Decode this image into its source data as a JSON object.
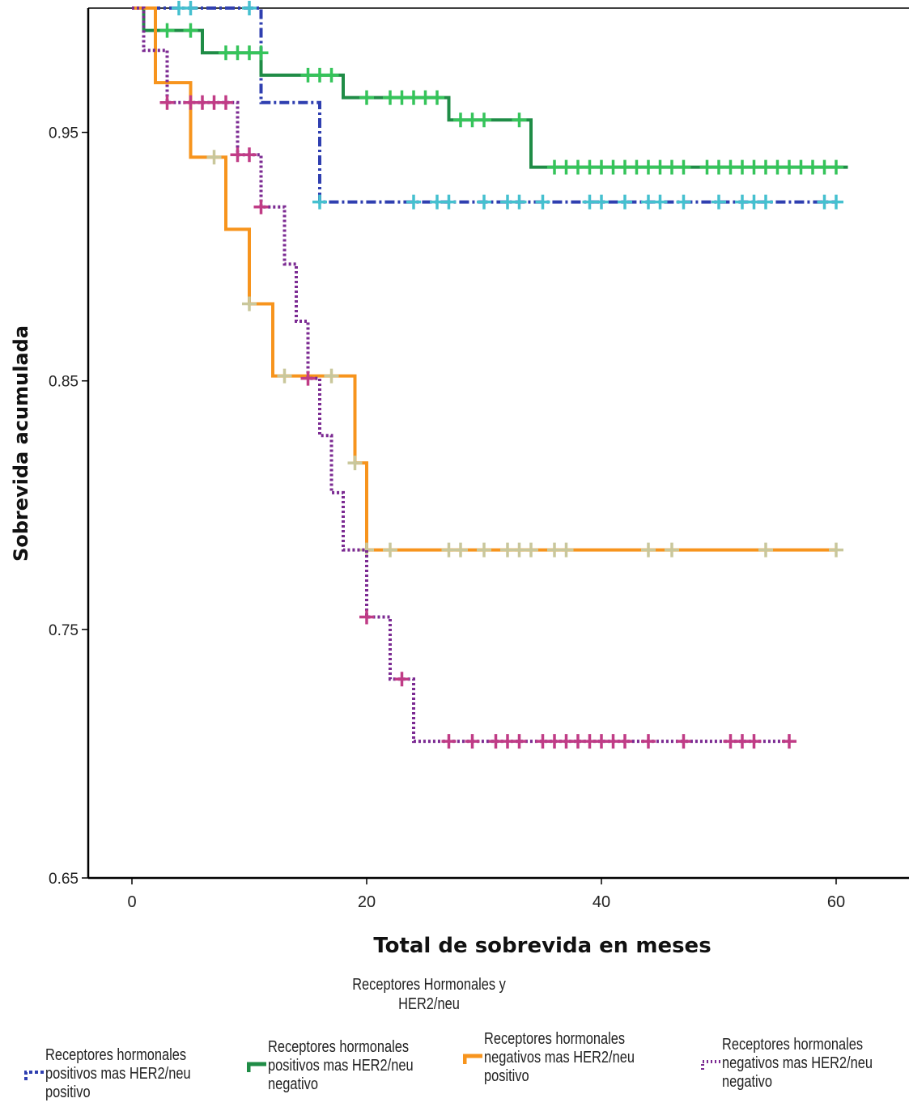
{
  "chart_data": {
    "type": "line",
    "title": "",
    "xlabel": "Total de sobrevida en meses",
    "ylabel": "Sobrevida acumulada",
    "xlim": [
      -4,
      66
    ],
    "ylim": [
      0.65,
      1.0
    ],
    "xticks": [
      0,
      20,
      40,
      60
    ],
    "yticks": [
      0.65,
      0.75,
      0.85,
      0.95
    ],
    "xtick_labels": [
      "0",
      "20",
      "40",
      "60"
    ],
    "ytick_labels": [
      "0.65",
      "0.75",
      "0.85",
      "0.95"
    ],
    "grid": false,
    "legend_title": "Receptores Hormonales y HER2/neu",
    "legend_position": "bottom",
    "series": [
      {
        "name": "Receptores hormonales positivos mas HER2/neu positivo",
        "color": "#2f3fb0",
        "censor_color": "#45c0cf",
        "dash": "12,4,3,4",
        "steps": [
          [
            0,
            1.0
          ],
          [
            11,
            0.962
          ],
          [
            16,
            0.922
          ],
          [
            60,
            0.922
          ]
        ],
        "censored": [
          [
            4,
            1.0
          ],
          [
            5,
            1.0
          ],
          [
            10,
            1.0
          ],
          [
            16,
            0.922
          ],
          [
            24,
            0.922
          ],
          [
            26,
            0.922
          ],
          [
            27,
            0.922
          ],
          [
            30,
            0.922
          ],
          [
            32,
            0.922
          ],
          [
            33,
            0.922
          ],
          [
            35,
            0.922
          ],
          [
            39,
            0.922
          ],
          [
            40,
            0.922
          ],
          [
            42,
            0.922
          ],
          [
            44,
            0.922
          ],
          [
            45,
            0.922
          ],
          [
            47,
            0.922
          ],
          [
            50,
            0.922
          ],
          [
            52,
            0.922
          ],
          [
            53,
            0.922
          ],
          [
            54,
            0.922
          ],
          [
            59,
            0.922
          ],
          [
            60,
            0.922
          ]
        ]
      },
      {
        "name": "Receptores hormonales positivos mas HER2/neu negativo",
        "color": "#1f8c46",
        "censor_color": "#35c45a",
        "dash": "",
        "steps": [
          [
            0,
            1.0
          ],
          [
            1,
            0.991
          ],
          [
            6,
            0.982
          ],
          [
            11,
            0.973
          ],
          [
            18,
            0.964
          ],
          [
            27,
            0.955
          ],
          [
            34,
            0.936
          ],
          [
            61,
            0.936
          ]
        ],
        "censored": [
          [
            3,
            0.991
          ],
          [
            5,
            0.991
          ],
          [
            8,
            0.982
          ],
          [
            9,
            0.982
          ],
          [
            10,
            0.982
          ],
          [
            11,
            0.982
          ],
          [
            15,
            0.973
          ],
          [
            16,
            0.973
          ],
          [
            17,
            0.973
          ],
          [
            20,
            0.964
          ],
          [
            22,
            0.964
          ],
          [
            23,
            0.964
          ],
          [
            24,
            0.964
          ],
          [
            25,
            0.964
          ],
          [
            26,
            0.964
          ],
          [
            28,
            0.955
          ],
          [
            29,
            0.955
          ],
          [
            30,
            0.955
          ],
          [
            33,
            0.955
          ],
          [
            36,
            0.936
          ],
          [
            37,
            0.936
          ],
          [
            38,
            0.936
          ],
          [
            39,
            0.936
          ],
          [
            40,
            0.936
          ],
          [
            41,
            0.936
          ],
          [
            42,
            0.936
          ],
          [
            43,
            0.936
          ],
          [
            44,
            0.936
          ],
          [
            45,
            0.936
          ],
          [
            46,
            0.936
          ],
          [
            47,
            0.936
          ],
          [
            49,
            0.936
          ],
          [
            50,
            0.936
          ],
          [
            51,
            0.936
          ],
          [
            52,
            0.936
          ],
          [
            53,
            0.936
          ],
          [
            54,
            0.936
          ],
          [
            55,
            0.936
          ],
          [
            56,
            0.936
          ],
          [
            57,
            0.936
          ],
          [
            58,
            0.936
          ],
          [
            59,
            0.936
          ],
          [
            60,
            0.936
          ]
        ]
      },
      {
        "name": "Receptores hormonales negativos mas HER2/neu positivo",
        "color": "#f7941d",
        "censor_color": "#c9c79b",
        "dash": "",
        "steps": [
          [
            0,
            1.0
          ],
          [
            2,
            0.97
          ],
          [
            5,
            0.94
          ],
          [
            8,
            0.911
          ],
          [
            10,
            0.881
          ],
          [
            12,
            0.852
          ],
          [
            19,
            0.817
          ],
          [
            20,
            0.782
          ],
          [
            60,
            0.782
          ]
        ],
        "censored": [
          [
            7,
            0.94
          ],
          [
            10,
            0.881
          ],
          [
            13,
            0.852
          ],
          [
            17,
            0.852
          ],
          [
            19,
            0.817
          ],
          [
            20,
            0.782
          ],
          [
            22,
            0.782
          ],
          [
            27,
            0.782
          ],
          [
            28,
            0.782
          ],
          [
            30,
            0.782
          ],
          [
            32,
            0.782
          ],
          [
            33,
            0.782
          ],
          [
            34,
            0.782
          ],
          [
            36,
            0.782
          ],
          [
            37,
            0.782
          ],
          [
            44,
            0.782
          ],
          [
            46,
            0.782
          ],
          [
            54,
            0.782
          ],
          [
            60,
            0.782
          ]
        ]
      },
      {
        "name": "Receptores hormonales negativos mas HER2/neu negativo",
        "color": "#7b2a92",
        "censor_color": "#c03c86",
        "dash": "3,3",
        "steps": [
          [
            0,
            1.0
          ],
          [
            1,
            0.983
          ],
          [
            3,
            0.962
          ],
          [
            9,
            0.941
          ],
          [
            11,
            0.92
          ],
          [
            13,
            0.897
          ],
          [
            14,
            0.874
          ],
          [
            15,
            0.851
          ],
          [
            16,
            0.828
          ],
          [
            17,
            0.805
          ],
          [
            18,
            0.782
          ],
          [
            20,
            0.755
          ],
          [
            22,
            0.73
          ],
          [
            24,
            0.705
          ],
          [
            56,
            0.705
          ]
        ],
        "censored": [
          [
            3,
            0.962
          ],
          [
            5,
            0.962
          ],
          [
            6,
            0.962
          ],
          [
            7,
            0.962
          ],
          [
            8,
            0.962
          ],
          [
            9,
            0.941
          ],
          [
            10,
            0.941
          ],
          [
            11,
            0.92
          ],
          [
            15,
            0.851
          ],
          [
            20,
            0.755
          ],
          [
            23,
            0.73
          ],
          [
            27,
            0.705
          ],
          [
            29,
            0.705
          ],
          [
            31,
            0.705
          ],
          [
            32,
            0.705
          ],
          [
            33,
            0.705
          ],
          [
            35,
            0.705
          ],
          [
            36,
            0.705
          ],
          [
            37,
            0.705
          ],
          [
            38,
            0.705
          ],
          [
            39,
            0.705
          ],
          [
            40,
            0.705
          ],
          [
            41,
            0.705
          ],
          [
            42,
            0.705
          ],
          [
            44,
            0.705
          ],
          [
            47,
            0.705
          ],
          [
            51,
            0.705
          ],
          [
            52,
            0.705
          ],
          [
            53,
            0.705
          ],
          [
            56,
            0.705
          ]
        ]
      }
    ]
  },
  "legend": {
    "title": "Receptores Hormonales y HER2/neu",
    "items": [
      {
        "label": "Receptores hormonales positivos mas HER2/neu positivo"
      },
      {
        "label": "Receptores hormonales positivos mas HER2/neu negativo"
      },
      {
        "label": "Receptores hormonales negativos mas HER2/neu positivo"
      },
      {
        "label": "Receptores hormonales negativos mas HER2/neu negativo"
      }
    ]
  }
}
